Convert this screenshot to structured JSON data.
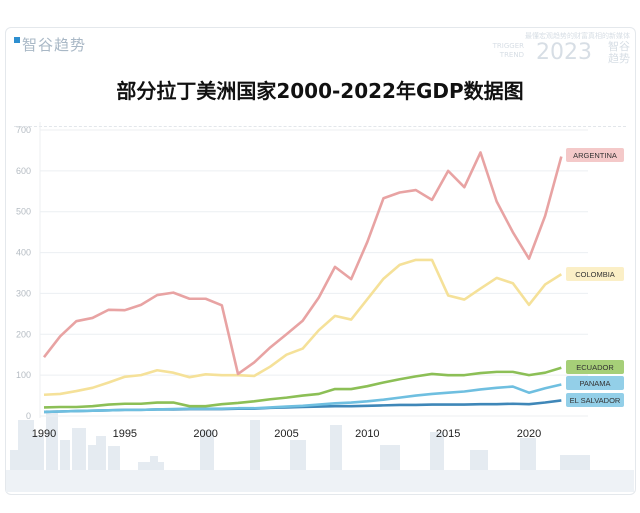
{
  "watermark": {
    "logo": "智谷趋势",
    "tagline": "最懂宏观趋势的财富真相的新媒体",
    "en": "TRIGGER TREND",
    "year": "2023",
    "cn": "智谷趋势"
  },
  "chart_data": {
    "type": "line",
    "title": "部分拉丁美洲国家2000-2022年GDP数据图",
    "xlabel": "",
    "ylabel": "",
    "xlim": [
      1990,
      2022
    ],
    "ylim": [
      0,
      700
    ],
    "yticks": [
      0,
      100,
      200,
      300,
      400,
      500,
      600,
      700
    ],
    "xticks": [
      1990,
      1995,
      2000,
      2005,
      2010,
      2015,
      2020
    ],
    "grid": true,
    "legend": "right-end labels",
    "x": [
      1990,
      1991,
      1992,
      1993,
      1994,
      1995,
      1996,
      1997,
      1998,
      1999,
      2000,
      2001,
      2002,
      2003,
      2004,
      2005,
      2006,
      2007,
      2008,
      2009,
      2010,
      2011,
      2012,
      2013,
      2014,
      2015,
      2016,
      2017,
      2018,
      2019,
      2020,
      2021,
      2022
    ],
    "series": [
      {
        "name": "ARGENTINA",
        "color": "#e8a3a3",
        "label_bg": "#f4c9c9",
        "values": [
          144,
          195,
          232,
          240,
          260,
          259,
          272,
          296,
          302,
          287,
          287,
          271,
          103,
          131,
          168,
          200,
          233,
          290,
          365,
          335,
          426,
          533,
          547,
          553,
          529,
          600,
          560,
          645,
          525,
          450,
          385,
          490,
          635
        ]
      },
      {
        "name": "COLOMBIA",
        "color": "#f5e199",
        "label_bg": "#fbefc6",
        "values": [
          52,
          54,
          61,
          69,
          82,
          96,
          100,
          112,
          106,
          95,
          102,
          100,
          100,
          98,
          121,
          150,
          165,
          210,
          245,
          236,
          286,
          336,
          370,
          382,
          382,
          295,
          285,
          312,
          338,
          325,
          272,
          322,
          347
        ]
      },
      {
        "name": "ECUADOR",
        "color": "#8cbf56",
        "label_bg": "#a6cf78",
        "values": [
          21,
          22,
          22,
          24,
          28,
          30,
          30,
          33,
          33,
          24,
          24,
          29,
          32,
          36,
          41,
          45,
          50,
          54,
          66,
          66,
          73,
          82,
          90,
          97,
          103,
          100,
          100,
          105,
          108,
          108,
          100,
          106,
          118
        ]
      },
      {
        "name": "PANAMA",
        "color": "#6fbfe0",
        "label_bg": "#93cfe8",
        "values": [
          10,
          11,
          12,
          13,
          14,
          15,
          15,
          16,
          17,
          18,
          18,
          18,
          19,
          19,
          21,
          23,
          25,
          28,
          31,
          33,
          36,
          40,
          45,
          50,
          54,
          57,
          60,
          65,
          69,
          72,
          57,
          68,
          77
        ]
      },
      {
        "name": "EL SALVADOR",
        "color": "#3f87b8",
        "label_bg": "#93cfe8",
        "values": [
          10,
          11,
          12,
          13,
          14,
          15,
          15,
          16,
          16,
          17,
          17,
          17,
          18,
          18,
          20,
          21,
          22,
          23,
          24,
          24,
          25,
          26,
          27,
          27,
          28,
          28,
          28,
          29,
          29,
          30,
          29,
          33,
          38
        ]
      }
    ]
  }
}
